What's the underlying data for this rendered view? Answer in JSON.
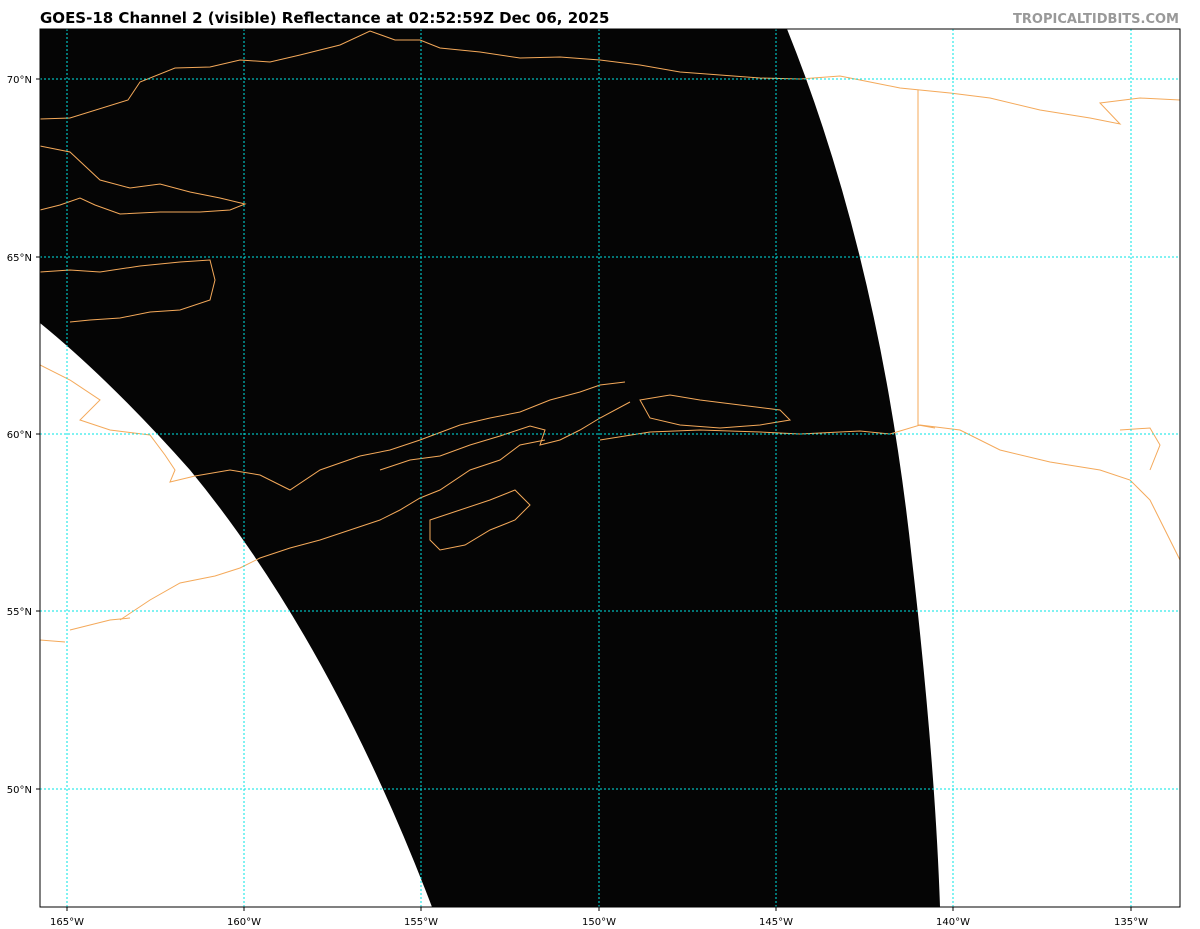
{
  "title": "GOES-18 Channel 2 (visible) Reflectance at 02:52:59Z Dec 06, 2025",
  "watermark": "TROPICALTIDBITS.COM",
  "map": {
    "lon_labels": [
      "165°W",
      "160°W",
      "155°W",
      "150°W",
      "145°W",
      "140°W",
      "135°W"
    ],
    "lat_labels": [
      "70°N",
      "65°N",
      "60°N",
      "55°N",
      "50°N"
    ],
    "colors": {
      "coastline": "#f4a95a",
      "gridline": "#00e5e5",
      "satellite_night": "#000000",
      "no_data": "#ffffff"
    }
  }
}
